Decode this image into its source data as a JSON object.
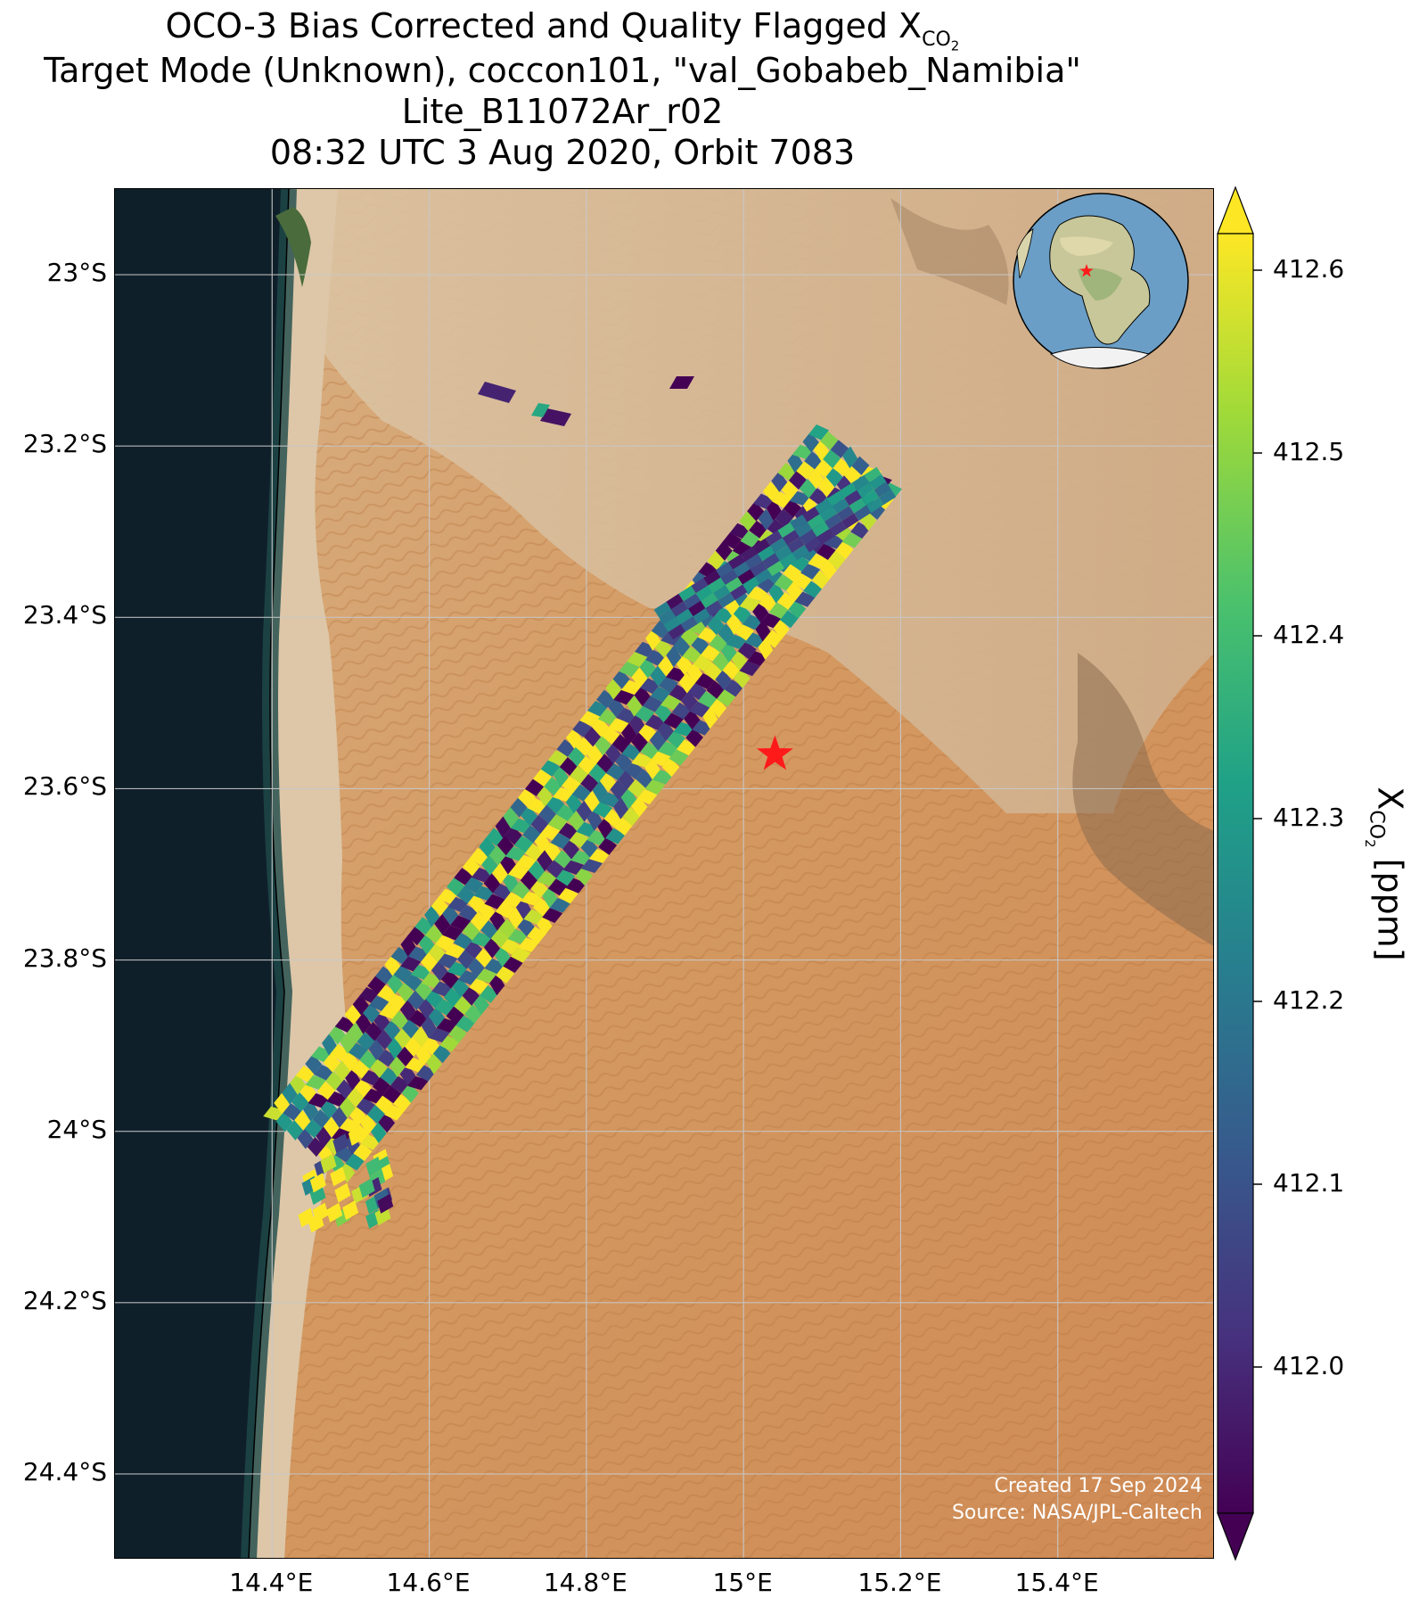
{
  "title": {
    "line1_text": "OCO-3 Bias Corrected and Quality Flagged X",
    "line1_sub": "CO",
    "line1_subsub": "2",
    "line2": "Target Mode (Unknown), coccon101, \"val_Gobabeb_Namibia\"",
    "line3": "Lite_B11072Ar_r02",
    "line4": "08:32 UTC 3 Aug 2020, Orbit 7083"
  },
  "map": {
    "lat_ticks": [
      "23°S",
      "23.2°S",
      "23.4°S",
      "23.6°S",
      "23.8°S",
      "24°S",
      "24.2°S",
      "24.4°S"
    ],
    "lon_ticks": [
      "14.4°E",
      "14.6°E",
      "14.8°E",
      "15°E",
      "15.2°E",
      "15.4°E"
    ],
    "extent": {
      "lon": [
        14.2,
        15.6
      ],
      "lat": [
        -24.5,
        -22.9
      ]
    },
    "target_site": {
      "name": "val_Gobabeb_Namibia",
      "lon": 15.04,
      "lat": -23.56,
      "marker": "red-star"
    },
    "colors": {
      "ocean": "#0f1f2a",
      "desert": "#d49a62",
      "star": "#ff1a1a"
    }
  },
  "colorbar": {
    "tick_labels": [
      "412.6",
      "412.5",
      "412.4",
      "412.3",
      "412.2",
      "412.1",
      "412.0"
    ],
    "range": [
      411.92,
      412.62
    ],
    "colormap": "viridis",
    "title_text": "X",
    "title_sub": "CO",
    "title_subsub": "2",
    "title_unit": "[ppm]"
  },
  "credits": {
    "created": "Created 17 Sep 2024",
    "source": "Source: NASA/JPL-Caltech"
  }
}
